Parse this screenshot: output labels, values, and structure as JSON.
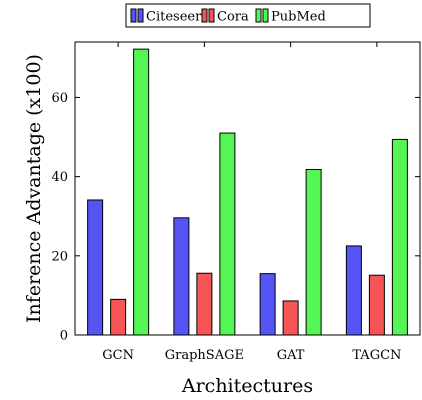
{
  "chart_data": {
    "type": "bar",
    "title": "",
    "xlabel": "Architectures",
    "ylabel": "Inference Advantage (x100)",
    "categories": [
      "GCN",
      "GraphSAGE",
      "GAT",
      "TAGCN"
    ],
    "ylim": [
      0,
      74
    ],
    "yticks": [
      0,
      20,
      40,
      60
    ],
    "ytick_labels": [
      "0",
      "20",
      "40",
      "60"
    ],
    "grid": false,
    "legend_position": "top-center",
    "series": [
      {
        "name": "Citeseer",
        "color": "#5555f5",
        "values": [
          34.1,
          29.6,
          15.5,
          22.5
        ]
      },
      {
        "name": "Cora",
        "color": "#f55555",
        "values": [
          9.0,
          15.6,
          8.6,
          15.1
        ]
      },
      {
        "name": "PubMed",
        "color": "#55f555",
        "values": [
          72.2,
          51.0,
          41.8,
          49.4
        ]
      }
    ]
  }
}
